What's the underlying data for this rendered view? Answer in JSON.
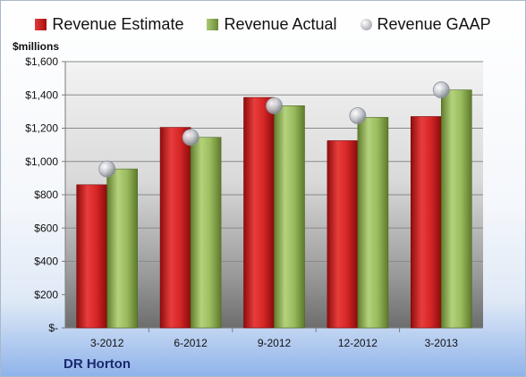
{
  "chart_data": {
    "type": "bar",
    "unit_label": "$millions",
    "company": "DR Horton",
    "categories": [
      "3-2012",
      "6-2012",
      "9-2012",
      "12-2012",
      "3-2013"
    ],
    "series": [
      {
        "name": "Revenue Estimate",
        "kind": "bar",
        "color": "#c41e1e",
        "values": [
          860,
          1205,
          1385,
          1125,
          1270
        ]
      },
      {
        "name": "Revenue Actual",
        "kind": "bar",
        "color": "#8cad52",
        "values": [
          955,
          1145,
          1335,
          1265,
          1430
        ]
      },
      {
        "name": "Revenue GAAP",
        "kind": "marker",
        "color": "#c0c3ca",
        "values": [
          955,
          1145,
          1335,
          1275,
          1430
        ]
      }
    ],
    "ylim": [
      0,
      1600
    ],
    "yticks": [
      0,
      200,
      400,
      600,
      800,
      1000,
      1200,
      1400,
      1600
    ],
    "ytick_labels": [
      "$-",
      "$200",
      "$400",
      "$600",
      "$800",
      "$1,000",
      "$1,200",
      "$1,400",
      "$1,600"
    ],
    "grid": true,
    "legend_position": "top"
  }
}
